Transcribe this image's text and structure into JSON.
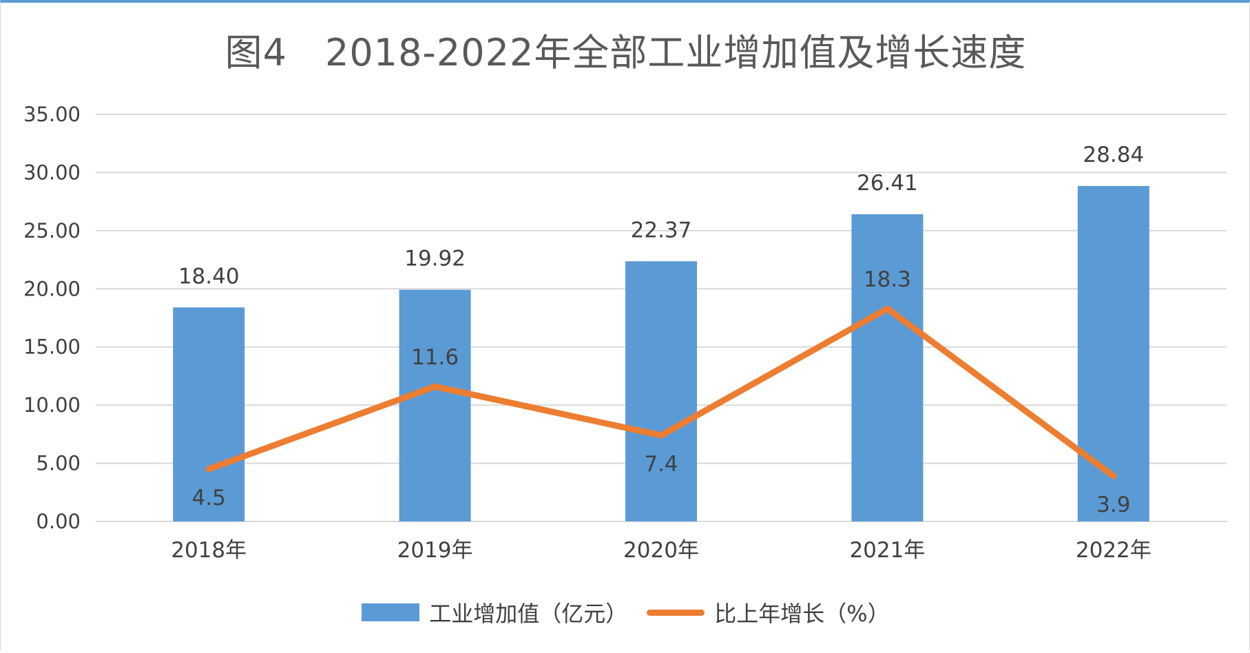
{
  "title": "图4　2018-2022年全部工业增加值及增长速度",
  "colors": {
    "bar": "#5b9bd5",
    "line": "#ed7d31",
    "grid": "#d9d9d9",
    "text": "#404040"
  },
  "legend": {
    "bar_label": "工业增加值（亿元）",
    "line_label": "比上年增长（%）"
  },
  "chart_data": {
    "type": "bar+line",
    "categories": [
      "2018年",
      "2019年",
      "2020年",
      "2021年",
      "2022年"
    ],
    "series": [
      {
        "name": "工业增加值（亿元）",
        "type": "bar",
        "values": [
          18.4,
          19.92,
          22.37,
          26.41,
          28.84
        ],
        "labels": [
          "18.40",
          "19.92",
          "22.37",
          "26.41",
          "28.84"
        ]
      },
      {
        "name": "比上年增长（%）",
        "type": "line",
        "values": [
          4.5,
          11.6,
          7.4,
          18.3,
          3.9
        ],
        "labels": [
          "4.5",
          "11.6",
          "7.4",
          "18.3",
          "3.9"
        ],
        "label_positions": [
          "below",
          "above",
          "below",
          "above",
          "below"
        ]
      }
    ],
    "ylim": [
      0,
      35
    ],
    "yticks": [
      0,
      5,
      10,
      15,
      20,
      25,
      30,
      35
    ],
    "ytick_labels": [
      "0.00",
      "5.00",
      "10.00",
      "15.00",
      "20.00",
      "25.00",
      "30.00",
      "35.00"
    ],
    "grid": true,
    "legend_position": "bottom"
  }
}
